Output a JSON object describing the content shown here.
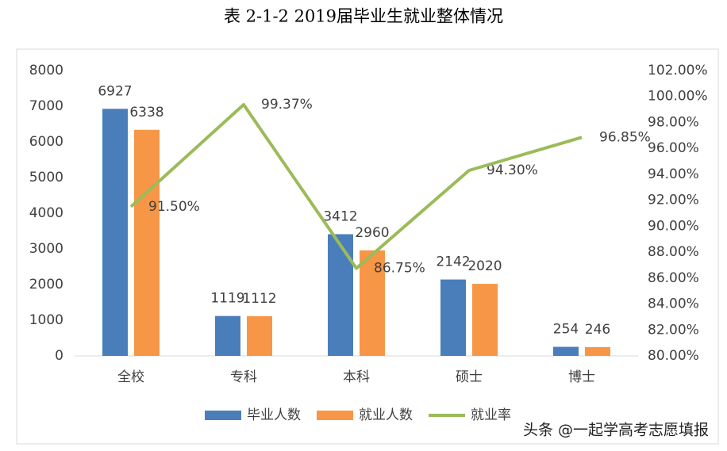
{
  "chart_data": {
    "type": "bar-line",
    "title": "表 2-1-2    2019届毕业生就业整体情况",
    "categories": [
      "全校",
      "专科",
      "本科",
      "硕士",
      "博士"
    ],
    "series": [
      {
        "name": "毕业人数",
        "type": "bar",
        "color": "#4a7ebb",
        "values": [
          6927,
          1119,
          3412,
          2142,
          254
        ]
      },
      {
        "name": "就业人数",
        "type": "bar",
        "color": "#f79646",
        "values": [
          6338,
          1112,
          2960,
          2020,
          246
        ]
      },
      {
        "name": "就业率",
        "type": "line",
        "axis": "y2",
        "color": "#9bbb59",
        "values": [
          91.5,
          99.37,
          86.75,
          94.3,
          96.85
        ],
        "value_labels": [
          "91.50%",
          "99.37%",
          "86.75%",
          "94.30%",
          "96.85%"
        ]
      }
    ],
    "ylim": [
      0,
      8000
    ],
    "yticks": [
      0,
      1000,
      2000,
      3000,
      4000,
      5000,
      6000,
      7000,
      8000
    ],
    "y2lim": [
      80,
      102
    ],
    "y2ticks": [
      {
        "value": 80,
        "label": "80.00%"
      },
      {
        "value": 82,
        "label": "82.00%"
      },
      {
        "value": 84,
        "label": "84.00%"
      },
      {
        "value": 86,
        "label": "86.00%"
      },
      {
        "value": 88,
        "label": "88.00%"
      },
      {
        "value": 90,
        "label": "90.00%"
      },
      {
        "value": 92,
        "label": "92.00%"
      },
      {
        "value": 94,
        "label": "94.00%"
      },
      {
        "value": 96,
        "label": "96.00%"
      },
      {
        "value": 98,
        "label": "98.00%"
      },
      {
        "value": 100,
        "label": "100.00%"
      },
      {
        "value": 102,
        "label": "102.00%"
      }
    ],
    "legend": "bottom",
    "grid": false,
    "watermark": "头条 @一起学高考志愿填报"
  }
}
